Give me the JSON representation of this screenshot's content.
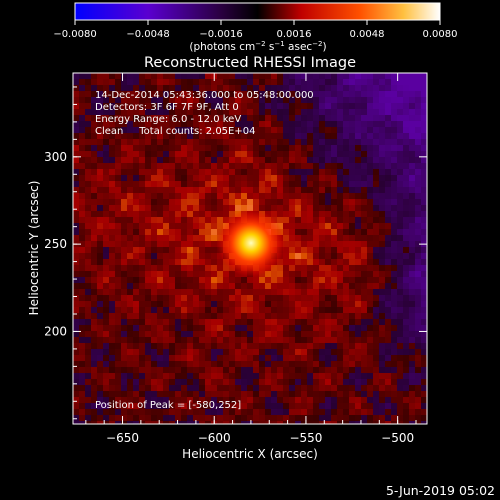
{
  "chart_data": {
    "type": "heatmap",
    "title": "Reconstructed RHESSI Image",
    "xlabel": "Heliocentric X (arcsec)",
    "ylabel": "Heliocentric Y (arcsec)",
    "xlim": [
      -677,
      -484
    ],
    "ylim": [
      147,
      348
    ],
    "xticks": [
      -650,
      -600,
      -550,
      -500
    ],
    "yticks": [
      200,
      250,
      300
    ],
    "annotation_lines": [
      "14-Dec-2014 05:43:36.000 to 05:48:00.000",
      "Detectors: 3F 6F 7F 9F, Att 0",
      "Energy Range: 6.0 - 12.0 keV",
      "Clean     Total counts: 2.05E+04"
    ],
    "peak_label": "Position of Peak = [-580,252]",
    "peak_position": [
      -580,
      252
    ],
    "colorbar": {
      "range": [
        -0.008,
        0.008
      ],
      "ticks": [
        "-0.0080",
        "-0.0048",
        "-0.0016",
        "0.0016",
        "0.0048",
        "0.0080"
      ],
      "units_label": "(photons cm-2 s-1 asec-2)",
      "colors": [
        "#0000ff",
        "#6a00c0",
        "#000000",
        "#d00000",
        "#ff8000",
        "#ffff80",
        "#ffffff"
      ]
    },
    "grid": false
  },
  "footer_timestamp": "5-Jun-2019 05:02"
}
